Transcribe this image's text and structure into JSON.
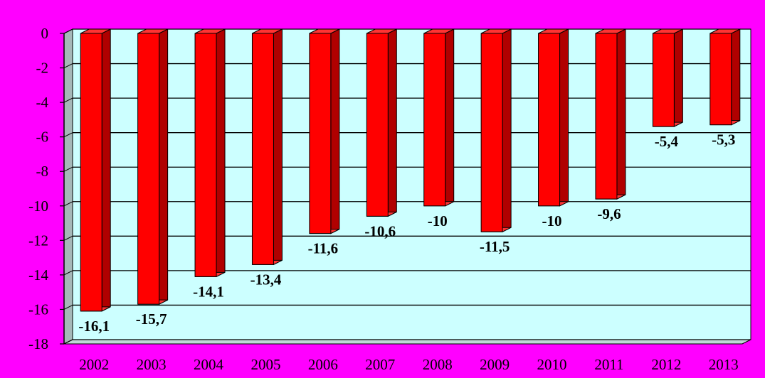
{
  "chart_data": {
    "type": "bar",
    "title": "",
    "xlabel": "",
    "ylabel": "",
    "categories": [
      "2002",
      "2003",
      "2004",
      "2005",
      "2006",
      "2007",
      "2008",
      "2009",
      "2010",
      "2011",
      "2012",
      "2013"
    ],
    "values": [
      -16.1,
      -15.7,
      -14.1,
      -13.4,
      -11.6,
      -10.6,
      -10,
      -11.5,
      -10,
      -9.6,
      -5.4,
      -5.3
    ],
    "data_labels": [
      "-16,1",
      "-15,7",
      "-14,1",
      "-13,4",
      "-11,6",
      "-10,6",
      "-10",
      "-11,5",
      "-10",
      "-9,6",
      "-5,4",
      "-5,3"
    ],
    "ylim": [
      -18,
      0
    ],
    "yticks": [
      0,
      -2,
      -4,
      -6,
      -8,
      -10,
      -12,
      -14,
      -16,
      -18
    ],
    "ytick_labels": [
      "0",
      "-2",
      "-4",
      "-6",
      "-8",
      "-10",
      "-12",
      "-14",
      "-16",
      "-18"
    ],
    "grid": true,
    "legend": "none",
    "colors": {
      "background": "#ff00ff",
      "plot_area": "#ccffff",
      "bar_front": "#ff0000",
      "bar_side": "#b00000",
      "bar_top": "#ff3333",
      "gridline": "#000000",
      "wall_side": "#a6b8b8",
      "floor": "#bfd6d6"
    }
  }
}
